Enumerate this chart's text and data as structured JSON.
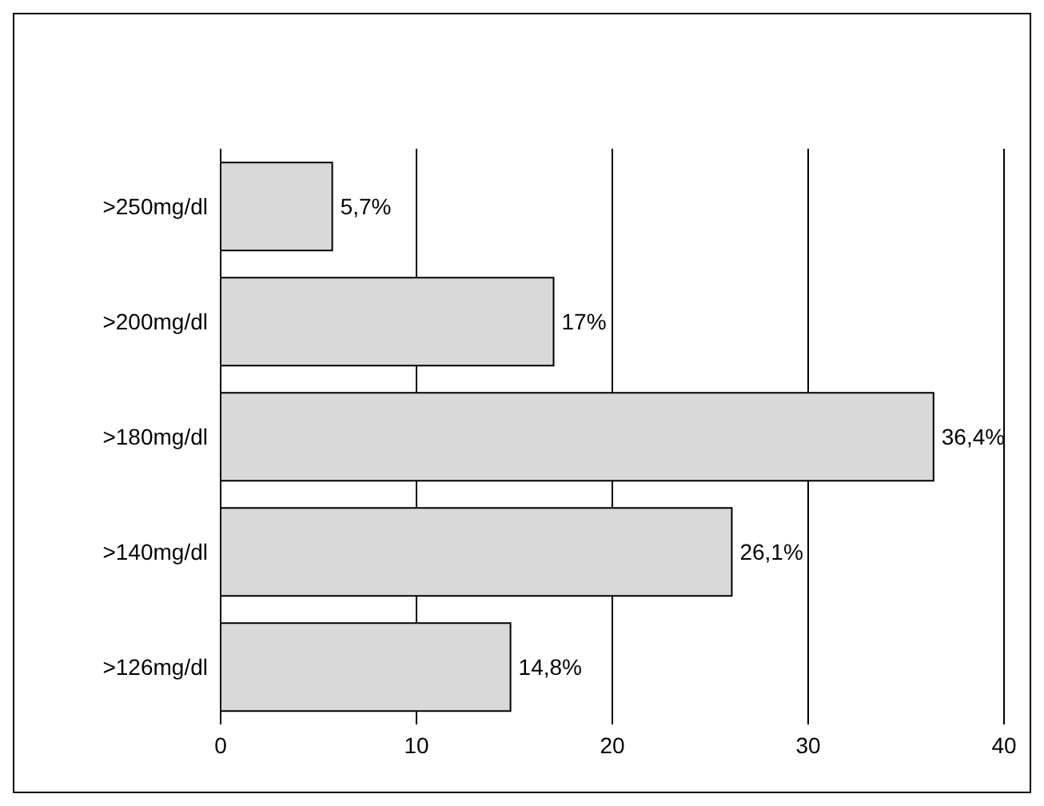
{
  "chart_data": {
    "type": "bar",
    "orientation": "horizontal",
    "categories": [
      ">250mg/dl",
      ">200mg/dl",
      ">180mg/dl",
      ">140mg/dl",
      ">126mg/dl"
    ],
    "values": [
      5.7,
      17,
      36.4,
      26.1,
      14.8
    ],
    "value_labels": [
      "5,7%",
      "17%",
      "36,4%",
      "26,1%",
      "14,8%"
    ],
    "color": "#d9d9d9",
    "xlim": [
      0,
      40
    ],
    "xticks": [
      0,
      10,
      20,
      30,
      40
    ],
    "grid": "x"
  }
}
